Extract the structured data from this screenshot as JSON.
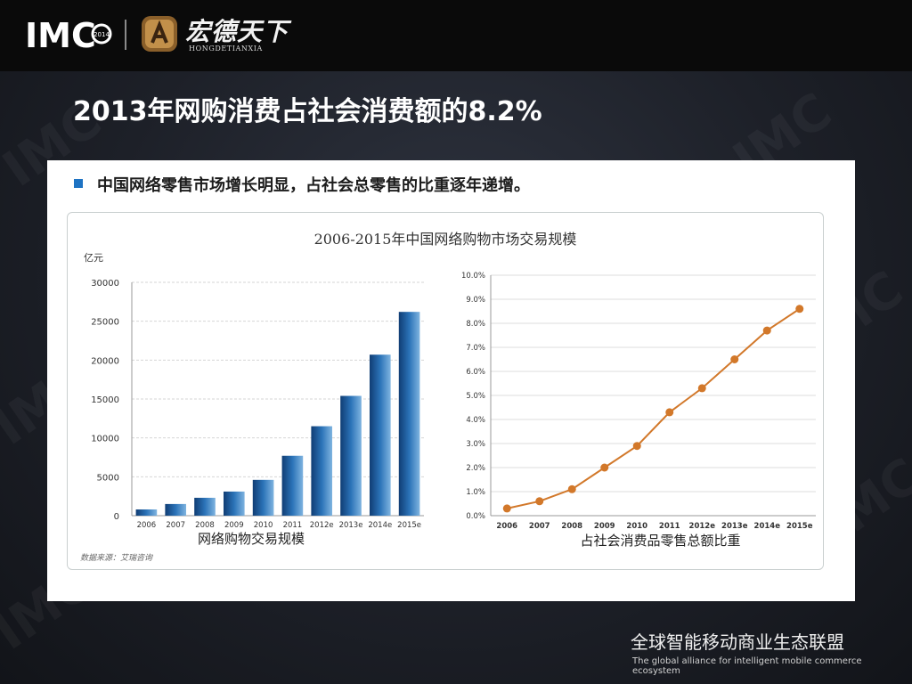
{
  "header": {
    "logo_imc": "IMC",
    "logo_imc_year": "2014",
    "brand_name_cn": "宏德天下",
    "brand_name_en": "HONGDETIANXIA"
  },
  "slide": {
    "title": "2013年网购消费占社会消费额的8.2%"
  },
  "panel": {
    "bullet": "中国网络零售市场增长明显，占社会总零售的比重逐年递增。",
    "figure_title": "2006-2015年中国网络购物市场交易规模",
    "source_note": "数据来源：艾瑞咨询"
  },
  "chart_data": [
    {
      "type": "bar",
      "ylabel": "亿元",
      "xlabel": "网络购物交易规模",
      "categories": [
        "2006",
        "2007",
        "2008",
        "2009",
        "2010",
        "2011",
        "2012e",
        "2013e",
        "2014e",
        "2015e"
      ],
      "values": [
        800,
        1500,
        2300,
        3100,
        4600,
        7700,
        11500,
        15400,
        20700,
        26200
      ],
      "ylim": [
        0,
        30000
      ],
      "yticks": [
        0,
        5000,
        10000,
        15000,
        20000,
        25000,
        30000
      ],
      "grid": true,
      "color": "#1f5a9a"
    },
    {
      "type": "line",
      "xlabel": "占社会消费品零售总额比重",
      "categories": [
        "2006",
        "2007",
        "2008",
        "2009",
        "2010",
        "2011",
        "2012e",
        "2013e",
        "2014e",
        "2015e"
      ],
      "values": [
        0.3,
        0.6,
        1.1,
        2.0,
        2.9,
        4.3,
        5.3,
        6.5,
        7.7,
        8.6
      ],
      "ylim": [
        0,
        10
      ],
      "yticks": [
        "0.0%",
        "1.0%",
        "2.0%",
        "3.0%",
        "4.0%",
        "5.0%",
        "6.0%",
        "7.0%",
        "8.0%",
        "9.0%",
        "10.0%"
      ],
      "grid": true,
      "color": "#d2782a"
    }
  ],
  "footer": {
    "alliance_cn": "全球智能移动商业生态联盟",
    "alliance_en": "The global alliance for intelligent mobile commerce ecosystem"
  }
}
